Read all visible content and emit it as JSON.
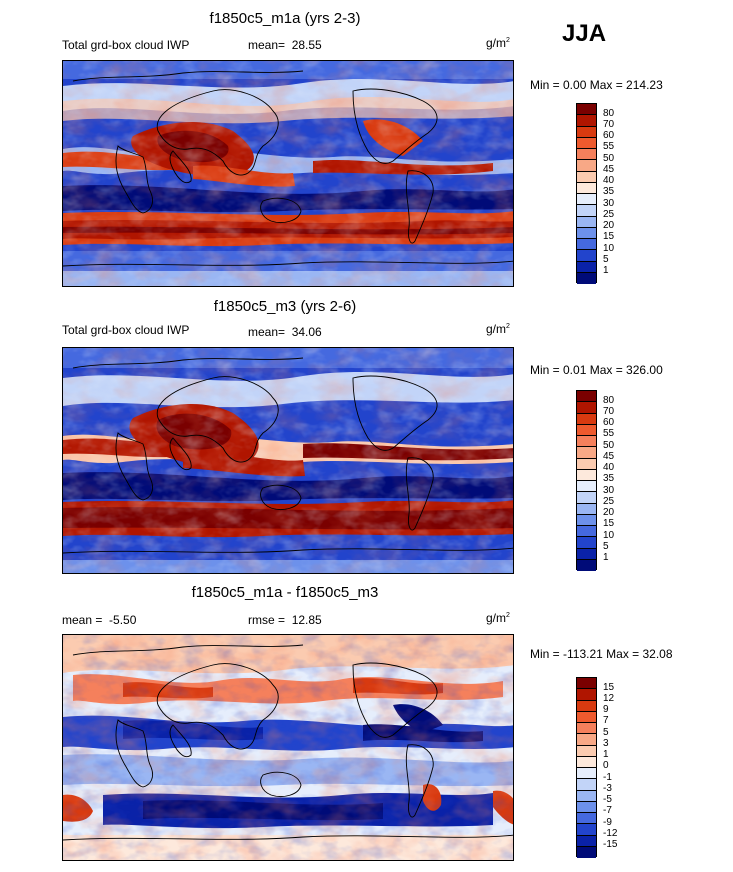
{
  "season": "JJA",
  "panels": [
    {
      "title": "f1850c5_m1a (yrs 2-3)",
      "left_label": "Total grd-box cloud IWP",
      "stat1_label": "mean=",
      "stat1_value": "28.55",
      "stat2_label": "",
      "stat2_value": "",
      "units_base": "g/m",
      "units_exp": "2",
      "minmax": "Min =   0.00 Max = 214.23",
      "levels": [
        "80",
        "70",
        "60",
        "55",
        "50",
        "45",
        "40",
        "35",
        "30",
        "25",
        "20",
        "15",
        "10",
        "5",
        "1"
      ],
      "colors": [
        "#7a0000",
        "#b01500",
        "#d83a10",
        "#ee5a2e",
        "#f5805c",
        "#f8a886",
        "#fbcbb0",
        "#fde9dc",
        "#e6eefc",
        "#c2d4f8",
        "#9ab6f3",
        "#6d91eb",
        "#4569df",
        "#2244cc",
        "#0a22a8",
        "#000b78"
      ]
    },
    {
      "title": "f1850c5_m3 (yrs 2-6)",
      "left_label": "Total grd-box cloud IWP",
      "stat1_label": "mean=",
      "stat1_value": "34.06",
      "stat2_label": "",
      "stat2_value": "",
      "units_base": "g/m",
      "units_exp": "2",
      "minmax": "Min =   0.01 Max = 326.00",
      "levels": [
        "80",
        "70",
        "60",
        "55",
        "50",
        "45",
        "40",
        "35",
        "30",
        "25",
        "20",
        "15",
        "10",
        "5",
        "1"
      ],
      "colors": [
        "#7a0000",
        "#b01500",
        "#d83a10",
        "#ee5a2e",
        "#f5805c",
        "#f8a886",
        "#fbcbb0",
        "#fde9dc",
        "#e6eefc",
        "#c2d4f8",
        "#9ab6f3",
        "#6d91eb",
        "#4569df",
        "#2244cc",
        "#0a22a8",
        "#000b78"
      ]
    },
    {
      "title": "f1850c5_m1a - f1850c5_m3",
      "left_label": "",
      "stat1_label": "mean =",
      "stat1_value": "-5.50",
      "stat2_label": "rmse =",
      "stat2_value": "12.85",
      "units_base": "g/m",
      "units_exp": "2",
      "minmax": "Min = -113.21 Max =  32.08",
      "levels": [
        "15",
        "12",
        "9",
        "7",
        "5",
        "3",
        "1",
        "0",
        "-1",
        "-3",
        "-5",
        "-7",
        "-9",
        "-12",
        "-15"
      ],
      "colors": [
        "#7a0000",
        "#b01500",
        "#d83a10",
        "#ee5a2e",
        "#f5805c",
        "#f8a886",
        "#fbcbb0",
        "#fde9dc",
        "#e6eefc",
        "#c2d4f8",
        "#9ab6f3",
        "#6d91eb",
        "#4569df",
        "#2244cc",
        "#0a22a8",
        "#000b78"
      ]
    }
  ]
}
